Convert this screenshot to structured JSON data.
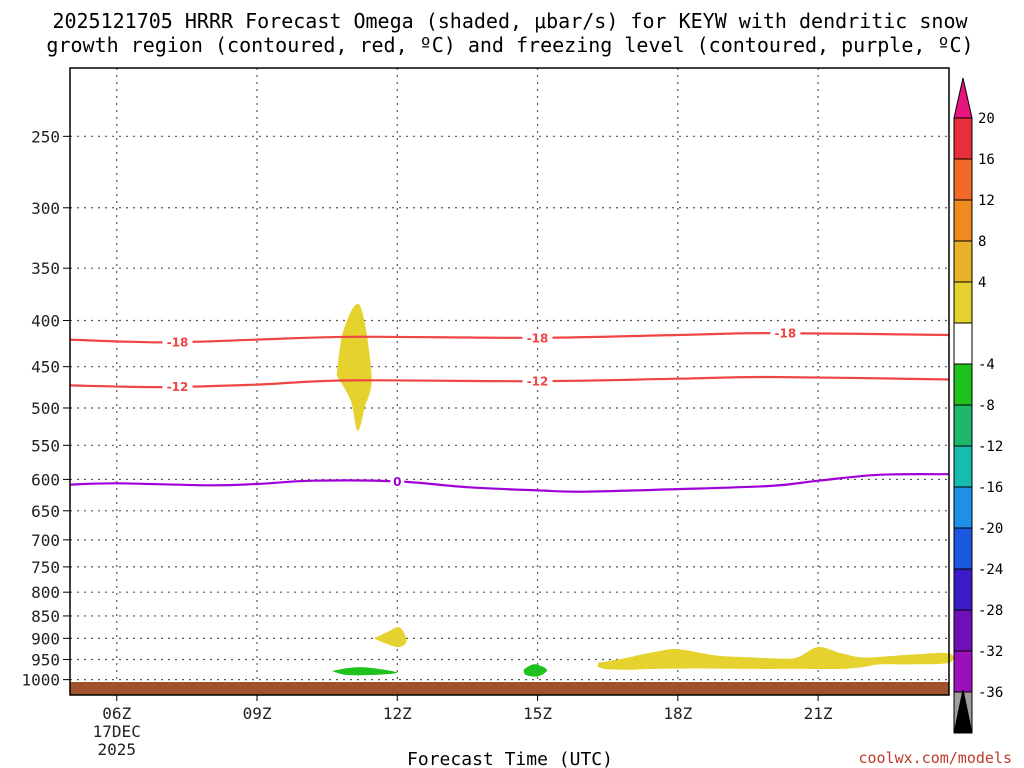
{
  "chart_data": {
    "type": "heatmap",
    "title_line1": "2025121705 HRRR Forecast Omega (shaded, μbar/s) for KEYW with dendritic snow",
    "title_line2": "growth region (contoured, red, ºC) and freezing level (contoured, purple, ºC)",
    "xlabel": "Forecast Time (UTC)",
    "credit": "coolwx.com/models",
    "x_hours_range": [
      5,
      23.8
    ],
    "y_pressure_range": [
      1040,
      210
    ],
    "y_ticks": [
      250,
      300,
      350,
      400,
      450,
      500,
      550,
      600,
      650,
      700,
      750,
      800,
      850,
      900,
      950,
      1000
    ],
    "x_ticks": [
      {
        "hour": 6,
        "label": "06Z",
        "sub1": "17DEC",
        "sub2": "2025"
      },
      {
        "hour": 9,
        "label": "09Z"
      },
      {
        "hour": 12,
        "label": "12Z"
      },
      {
        "hour": 15,
        "label": "15Z"
      },
      {
        "hour": 18,
        "label": "18Z"
      },
      {
        "hour": 21,
        "label": "21Z"
      }
    ],
    "colorbar": {
      "colors": [
        "#e8157f",
        "#e8303a",
        "#f06a25",
        "#ef8a1e",
        "#e9b02a",
        "#e5d22e",
        "#ffffff",
        "#1fc11c",
        "#1eb86c",
        "#16bcb0",
        "#1e90e8",
        "#1a58e0",
        "#3b1bc8",
        "#6e10b8",
        "#9c0fbd",
        "#9e9e9e",
        "#000000"
      ],
      "labels": [
        "20",
        "16",
        "12",
        "8",
        "4",
        "-4",
        "-8",
        "-12",
        "-16",
        "-20",
        "-24",
        "-28",
        "-32",
        "-36"
      ]
    },
    "contours": [
      {
        "name": "dgz-minus18",
        "value": -18,
        "color": "#f04545",
        "points": [
          [
            5,
            420
          ],
          [
            7,
            423
          ],
          [
            9,
            420
          ],
          [
            11,
            417
          ],
          [
            15,
            418
          ],
          [
            18,
            415
          ],
          [
            20,
            413
          ],
          [
            23.8,
            415
          ]
        ],
        "labels": [
          {
            "hour": 7.3,
            "text": "-18"
          },
          {
            "hour": 15,
            "text": "-18"
          },
          {
            "hour": 20.3,
            "text": "-18"
          }
        ]
      },
      {
        "name": "dgz-minus12",
        "value": -12,
        "color": "#f04545",
        "points": [
          [
            5,
            472
          ],
          [
            7,
            474
          ],
          [
            9,
            471
          ],
          [
            11,
            466
          ],
          [
            15,
            467
          ],
          [
            18,
            464
          ],
          [
            20,
            462
          ],
          [
            23.8,
            465
          ]
        ],
        "labels": [
          {
            "hour": 7.3,
            "text": "-12"
          },
          {
            "hour": 15,
            "text": "-12"
          }
        ]
      },
      {
        "name": "freezing-level",
        "value": 0,
        "color": "#a000d8",
        "points": [
          [
            5,
            608
          ],
          [
            6,
            606
          ],
          [
            8,
            609
          ],
          [
            9,
            607
          ],
          [
            10.2,
            602
          ],
          [
            12,
            603
          ],
          [
            13.5,
            612
          ],
          [
            15,
            617
          ],
          [
            16,
            619
          ],
          [
            18,
            615
          ],
          [
            20,
            610
          ],
          [
            21,
            602
          ],
          [
            22.3,
            593
          ],
          [
            23.8,
            592
          ]
        ],
        "labels": [
          {
            "hour": 12,
            "text": "0"
          }
        ]
      }
    ],
    "shaded_regions": [
      {
        "name": "omega-4-8-upper",
        "value_range": "4 to 8",
        "color": "#e5d22e",
        "points": [
          [
            10.7,
            460
          ],
          [
            10.85,
            410
          ],
          [
            11.2,
            385
          ],
          [
            11.45,
            460
          ],
          [
            11.3,
            500
          ],
          [
            11.15,
            530
          ],
          [
            11.0,
            490
          ]
        ]
      },
      {
        "name": "omega-4-8-low-12z",
        "value_range": "4 to 8",
        "color": "#e5d22e",
        "points": [
          [
            11.5,
            900
          ],
          [
            11.8,
            885
          ],
          [
            12.05,
            875
          ],
          [
            12.2,
            905
          ],
          [
            12.05,
            920
          ],
          [
            11.75,
            912
          ]
        ]
      },
      {
        "name": "omega-4-8-late",
        "value_range": "4 to 8",
        "color": "#e5d22e",
        "points": [
          [
            16.3,
            958
          ],
          [
            16.8,
            948
          ],
          [
            17.5,
            932
          ],
          [
            18,
            925
          ],
          [
            18.8,
            940
          ],
          [
            19.6,
            945
          ],
          [
            20.3,
            948
          ],
          [
            20.6,
            943
          ],
          [
            21,
            920
          ],
          [
            21.5,
            935
          ],
          [
            22,
            945
          ],
          [
            23,
            938
          ],
          [
            23.8,
            935
          ],
          [
            23.8,
            958
          ],
          [
            23,
            962
          ],
          [
            22.3,
            962
          ],
          [
            22,
            968
          ],
          [
            21.5,
            973
          ],
          [
            20.5,
            973
          ],
          [
            19.5,
            973
          ],
          [
            18.5,
            972
          ],
          [
            17.5,
            973
          ],
          [
            17,
            975
          ],
          [
            16.5,
            974
          ],
          [
            16.3,
            968
          ]
        ]
      },
      {
        "name": "omega-minus4-minus8-11z",
        "value_range": "-4 to -8",
        "color": "#1fc11c",
        "points": [
          [
            10.6,
            978
          ],
          [
            11,
            970
          ],
          [
            11.4,
            970
          ],
          [
            12,
            982
          ],
          [
            11.5,
            988
          ],
          [
            10.9,
            988
          ]
        ]
      },
      {
        "name": "omega-minus4-minus8-15z",
        "value_range": "-4 to -8",
        "color": "#1fc11c",
        "points": [
          [
            14.7,
            975
          ],
          [
            14.9,
            962
          ],
          [
            15.1,
            967
          ],
          [
            15.2,
            978
          ],
          [
            15.0,
            992
          ],
          [
            14.75,
            988
          ]
        ]
      }
    ],
    "ground_color": "#a0522d"
  }
}
